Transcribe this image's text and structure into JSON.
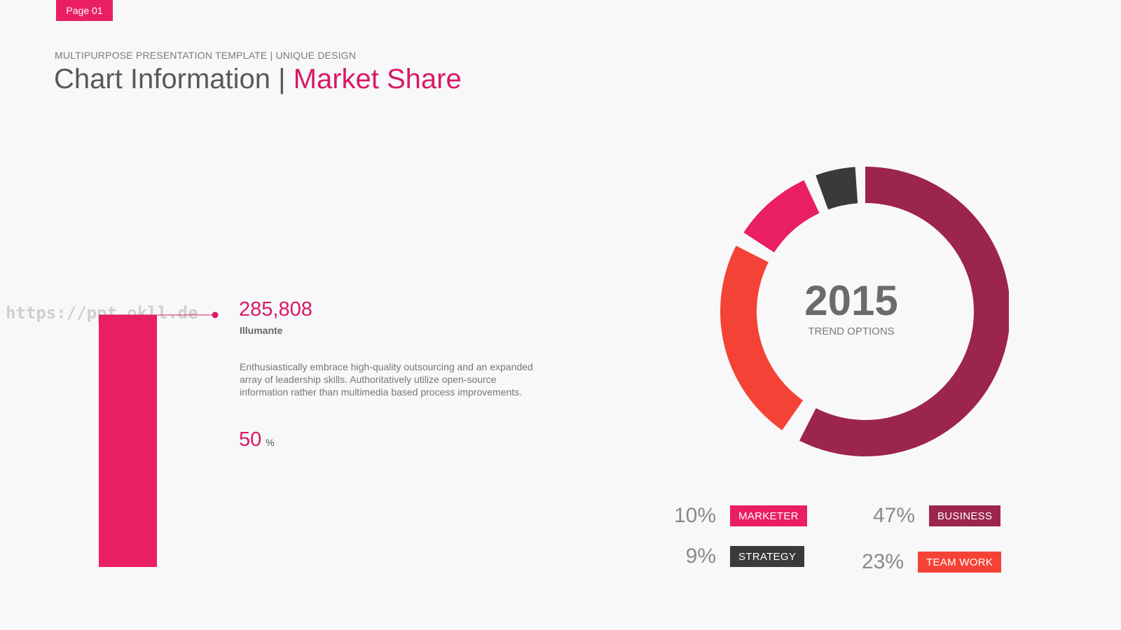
{
  "page_tag": "Page 01",
  "header": {
    "subtitle": "MULTIPURPOSE PRESENTATION TEMPLATE | UNIQUE DESIGN",
    "title_main": "Chart Information | ",
    "title_accent": "Market Share"
  },
  "watermark": "https://ppt.okll.de",
  "stat": {
    "value": "285,808",
    "label": "Illumante",
    "description": "Enthusiastically embrace high-quality outsourcing and an expanded array of leadership skills. Authoritatively utilize open-source information rather than multimedia based process improvements.",
    "percent_value": "50",
    "percent_unit": "%"
  },
  "center": {
    "year": "2015",
    "subtitle": "TREND OPTIONS"
  },
  "colors": {
    "pink": "#e91e63",
    "maroon": "#9c254d",
    "dark": "#3a3a3c",
    "red": "#f44336",
    "line_pink": "#d81b60"
  },
  "legend": [
    {
      "value": "10%",
      "label": "MARKETER",
      "color": "#e91e63"
    },
    {
      "value": "47%",
      "label": "BUSINESS",
      "color": "#9c254d"
    },
    {
      "value": "9%",
      "label": "STRATEGY",
      "color": "#3a3a3c"
    },
    {
      "value": "23%",
      "label": "TEAM WORK",
      "color": "#f44336"
    }
  ],
  "chart_data": [
    {
      "type": "bar",
      "categories": [
        "Illumante"
      ],
      "values": [
        50
      ],
      "ylim": [
        0,
        100
      ]
    },
    {
      "type": "pie",
      "title": "2015",
      "subtitle": "TREND OPTIONS",
      "categories": [
        "BUSINESS",
        "TEAM WORK",
        "MARKETER",
        "STRATEGY"
      ],
      "values": [
        47,
        23,
        10,
        9
      ],
      "colors": [
        "#9c254d",
        "#f44336",
        "#e91e63",
        "#3a3a3c"
      ]
    }
  ]
}
